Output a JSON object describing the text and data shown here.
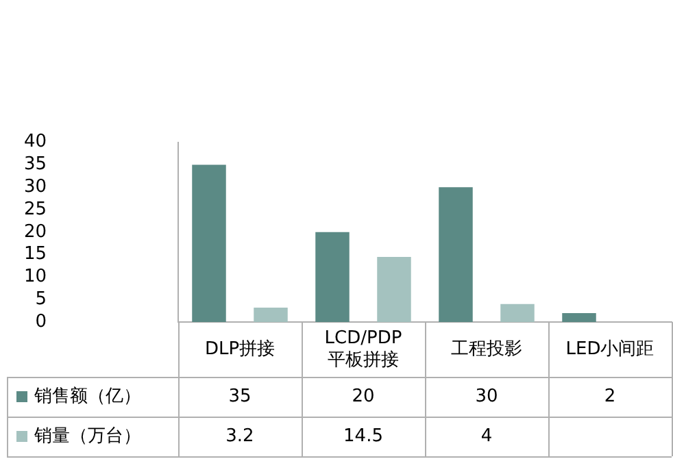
{
  "chart_data": {
    "type": "bar",
    "categories": [
      "DLP拼接",
      "LCD/PDP\n平板拼接",
      "工程投影",
      "LED小间距"
    ],
    "series": [
      {
        "name": "销售额（亿）",
        "color": "#5b8a85",
        "values": [
          35,
          20,
          30,
          2
        ]
      },
      {
        "name": "销量（万台）",
        "color": "#a4c2bf",
        "values": [
          3.2,
          14.5,
          4,
          null
        ]
      }
    ],
    "ylim": [
      0,
      40
    ],
    "yticks": [
      0,
      5,
      10,
      15,
      20,
      25,
      30,
      35,
      40
    ],
    "grid": false,
    "legend": "bottom",
    "data_labels": true
  }
}
